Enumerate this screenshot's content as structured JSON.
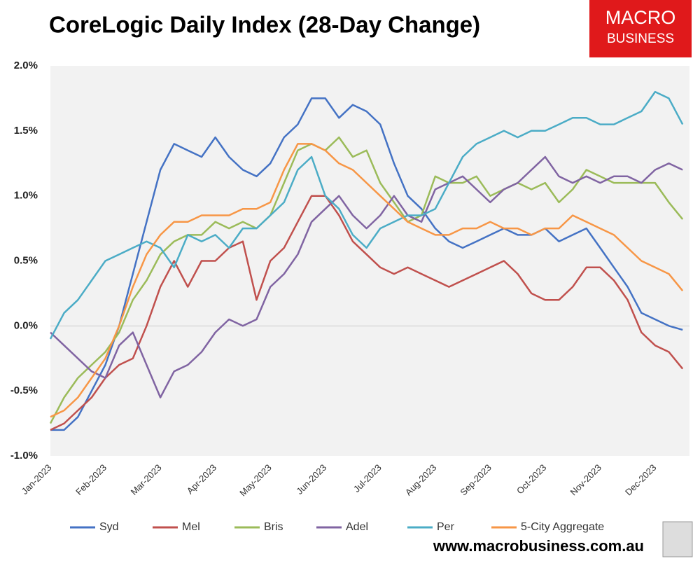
{
  "chart_data": {
    "type": "line",
    "title": "CoreLogic Daily Index (28-Day Change)",
    "logo": [
      "MACRO",
      "BUSINESS"
    ],
    "source": "www.macrobusiness.com.au",
    "categories": [
      "Jan-2023",
      null,
      null,
      null,
      "Feb-2023",
      null,
      null,
      null,
      "Mar-2023",
      null,
      null,
      null,
      "Apr-2023",
      null,
      null,
      null,
      "May-2023",
      null,
      null,
      null,
      "Jun-2023",
      null,
      null,
      null,
      "Jul-2023",
      null,
      null,
      null,
      "Aug-2023",
      null,
      null,
      null,
      "Sep-2023",
      null,
      null,
      null,
      "Oct-2023",
      null,
      null,
      null,
      "Nov-2023",
      null,
      null,
      null,
      "Dec-2023",
      null,
      null
    ],
    "ylim": [
      -1.0,
      2.0
    ],
    "yticks": [
      {
        "value": -1.0,
        "label": "-1.0%"
      },
      {
        "value": -0.5,
        "label": "-0.5%"
      },
      {
        "value": 0.0,
        "label": "0.0%"
      },
      {
        "value": 0.5,
        "label": "0.5%"
      },
      {
        "value": 1.0,
        "label": "1.0%"
      },
      {
        "value": 1.5,
        "label": "1.5%"
      },
      {
        "value": 2.0,
        "label": "2.0%"
      }
    ],
    "series": [
      {
        "name": "Syd",
        "color": "#4472c4",
        "values": [
          -0.8,
          -0.8,
          -0.7,
          -0.5,
          -0.3,
          0.0,
          0.4,
          0.8,
          1.2,
          1.4,
          1.35,
          1.3,
          1.45,
          1.3,
          1.2,
          1.15,
          1.25,
          1.45,
          1.55,
          1.75,
          1.75,
          1.6,
          1.7,
          1.65,
          1.55,
          1.25,
          1.0,
          0.9,
          0.75,
          0.65,
          0.6,
          0.65,
          0.7,
          0.75,
          0.7,
          0.7,
          0.75,
          0.65,
          0.7,
          0.75,
          0.6,
          0.45,
          0.3,
          0.1,
          0.05,
          0.0,
          -0.03
        ]
      },
      {
        "name": "Mel",
        "color": "#c0504d",
        "values": [
          -0.8,
          -0.75,
          -0.65,
          -0.55,
          -0.4,
          -0.3,
          -0.25,
          0.0,
          0.3,
          0.5,
          0.3,
          0.5,
          0.5,
          0.6,
          0.65,
          0.2,
          0.5,
          0.6,
          0.8,
          1.0,
          1.0,
          0.85,
          0.65,
          0.55,
          0.45,
          0.4,
          0.45,
          0.4,
          0.35,
          0.3,
          0.35,
          0.4,
          0.45,
          0.5,
          0.4,
          0.25,
          0.2,
          0.2,
          0.3,
          0.45,
          0.45,
          0.35,
          0.2,
          -0.05,
          -0.15,
          -0.2,
          -0.33
        ]
      },
      {
        "name": "Bris",
        "color": "#9bbb59",
        "values": [
          -0.75,
          -0.55,
          -0.4,
          -0.3,
          -0.2,
          -0.05,
          0.2,
          0.35,
          0.55,
          0.65,
          0.7,
          0.7,
          0.8,
          0.75,
          0.8,
          0.75,
          0.85,
          1.1,
          1.35,
          1.4,
          1.35,
          1.45,
          1.3,
          1.35,
          1.1,
          0.95,
          0.8,
          0.85,
          1.15,
          1.1,
          1.1,
          1.15,
          1.0,
          1.05,
          1.1,
          1.05,
          1.1,
          0.95,
          1.05,
          1.2,
          1.15,
          1.1,
          1.1,
          1.1,
          1.1,
          0.95,
          0.82
        ]
      },
      {
        "name": "Adel",
        "color": "#8064a2",
        "values": [
          -0.05,
          -0.15,
          -0.25,
          -0.35,
          -0.4,
          -0.15,
          -0.05,
          -0.3,
          -0.55,
          -0.35,
          -0.3,
          -0.2,
          -0.05,
          0.05,
          0.0,
          0.05,
          0.3,
          0.4,
          0.55,
          0.8,
          0.9,
          1.0,
          0.85,
          0.75,
          0.85,
          1.0,
          0.85,
          0.8,
          1.05,
          1.1,
          1.15,
          1.05,
          0.95,
          1.05,
          1.1,
          1.2,
          1.3,
          1.15,
          1.1,
          1.15,
          1.1,
          1.15,
          1.15,
          1.1,
          1.2,
          1.25,
          1.2
        ]
      },
      {
        "name": "Per",
        "color": "#4bacc6",
        "values": [
          -0.1,
          0.1,
          0.2,
          0.35,
          0.5,
          0.55,
          0.6,
          0.65,
          0.6,
          0.45,
          0.7,
          0.65,
          0.7,
          0.6,
          0.75,
          0.75,
          0.85,
          0.95,
          1.2,
          1.3,
          1.0,
          0.9,
          0.7,
          0.6,
          0.75,
          0.8,
          0.85,
          0.85,
          0.9,
          1.1,
          1.3,
          1.4,
          1.45,
          1.5,
          1.45,
          1.5,
          1.5,
          1.55,
          1.6,
          1.6,
          1.55,
          1.55,
          1.6,
          1.65,
          1.8,
          1.75,
          1.55
        ]
      },
      {
        "name": "5-City Aggregate",
        "color": "#f79646",
        "values": [
          -0.7,
          -0.65,
          -0.55,
          -0.4,
          -0.25,
          0.0,
          0.3,
          0.55,
          0.7,
          0.8,
          0.8,
          0.85,
          0.85,
          0.85,
          0.9,
          0.9,
          0.95,
          1.2,
          1.4,
          1.4,
          1.35,
          1.25,
          1.2,
          1.1,
          1.0,
          0.9,
          0.8,
          0.75,
          0.7,
          0.7,
          0.75,
          0.75,
          0.8,
          0.75,
          0.75,
          0.7,
          0.75,
          0.75,
          0.85,
          0.8,
          0.75,
          0.7,
          0.6,
          0.5,
          0.45,
          0.4,
          0.27
        ]
      }
    ],
    "grid": false
  }
}
